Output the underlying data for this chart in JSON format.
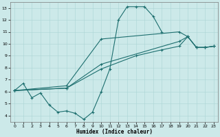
{
  "xlabel": "Humidex (Indice chaleur)",
  "xlim": [
    -0.5,
    23.5
  ],
  "ylim": [
    3.5,
    13.5
  ],
  "xticks": [
    0,
    1,
    2,
    3,
    4,
    5,
    6,
    7,
    8,
    9,
    10,
    11,
    12,
    13,
    14,
    15,
    16,
    17,
    18,
    19,
    20,
    21,
    22,
    23
  ],
  "yticks": [
    4,
    5,
    6,
    7,
    8,
    9,
    10,
    11,
    12,
    13
  ],
  "bg_color": "#cce9e9",
  "grid_color": "#aad4d4",
  "line_color": "#1c6e6e",
  "s1x": [
    0,
    1,
    2,
    3,
    4,
    5,
    6,
    7,
    8,
    9,
    10,
    11,
    12,
    13,
    14,
    15,
    16,
    17
  ],
  "s1y": [
    6.1,
    6.7,
    5.5,
    5.9,
    4.9,
    4.3,
    4.4,
    4.2,
    3.7,
    4.3,
    6.0,
    7.9,
    12.0,
    13.1,
    13.1,
    13.1,
    12.3,
    11.0
  ],
  "s2x": [
    0,
    6,
    10,
    14,
    17,
    19,
    20,
    21,
    22,
    23
  ],
  "s2y": [
    6.1,
    6.3,
    7.9,
    9.0,
    9.5,
    9.8,
    10.6,
    9.7,
    9.7,
    9.8
  ],
  "s3x": [
    0,
    6,
    10,
    19,
    20,
    21,
    22,
    23
  ],
  "s3y": [
    6.1,
    6.3,
    8.3,
    10.2,
    10.6,
    9.7,
    9.7,
    9.8
  ],
  "s4x": [
    0,
    6,
    10,
    19,
    20,
    21,
    22,
    23
  ],
  "s4y": [
    6.1,
    6.5,
    10.4,
    11.0,
    10.6,
    9.7,
    9.7,
    9.8
  ],
  "figsize": [
    3.2,
    2.0
  ],
  "dpi": 100
}
